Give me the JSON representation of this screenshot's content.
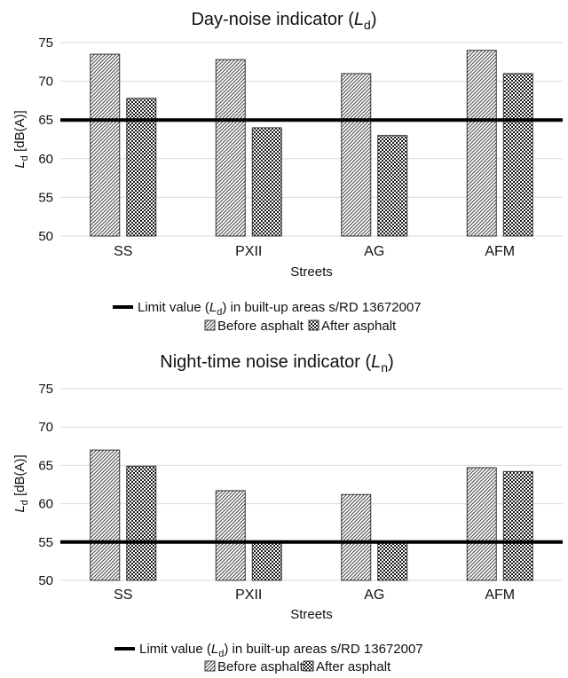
{
  "chart_data": [
    {
      "type": "bar",
      "title": "Day-noise indicator (",
      "title_symbol": "L",
      "title_sub": "d",
      "title_close": ")",
      "ylabel_symbol": "L",
      "ylabel_sub": "d",
      "ylabel_unit": " [dB(A)]",
      "xlabel": "Streets",
      "categories": [
        "SS",
        "PXII",
        "AG",
        "AFM"
      ],
      "series": [
        {
          "name": "Before asphalt",
          "values": [
            73.5,
            72.8,
            71.0,
            74.0
          ]
        },
        {
          "name": "After asphalt",
          "values": [
            67.8,
            64.0,
            63.0,
            71.0
          ]
        }
      ],
      "ylim": [
        50,
        75
      ],
      "yticks": [
        "50",
        "55",
        "60",
        "65",
        "70",
        "75"
      ],
      "grid": true,
      "limit_value": 65,
      "limit_label_pre": "Limit value (",
      "limit_label_symbol": "L",
      "limit_label_sub": "d",
      "limit_label_post": ") in built-up areas s/RD 13672007",
      "legend_position": "bottom"
    },
    {
      "type": "bar",
      "title": "Night-time noise indicator (",
      "title_symbol": "L",
      "title_sub": "n",
      "title_close": ")",
      "ylabel_symbol": "L",
      "ylabel_sub": "d",
      "ylabel_unit": " [dB(A)]",
      "xlabel": "Streets",
      "categories": [
        "SS",
        "PXII",
        "AG",
        "AFM"
      ],
      "series": [
        {
          "name": "Before asphalt",
          "values": [
            67.0,
            61.7,
            61.2,
            64.7
          ]
        },
        {
          "name": "After asphalt",
          "values": [
            64.9,
            55.0,
            55.0,
            64.2
          ]
        }
      ],
      "ylim": [
        50,
        75
      ],
      "yticks": [
        "50",
        "55",
        "60",
        "65",
        "70",
        "75"
      ],
      "grid": true,
      "limit_value": 55,
      "limit_label_pre": "Limit value (",
      "limit_label_symbol": "L",
      "limit_label_sub": "d",
      "limit_label_post": ") in built-up areas s/RD 13672007",
      "legend_position": "bottom"
    }
  ],
  "colors": {
    "bar_stroke": "#333333",
    "limit_line": "#000000",
    "grid": "#d9d9d9",
    "text": "#111111"
  }
}
